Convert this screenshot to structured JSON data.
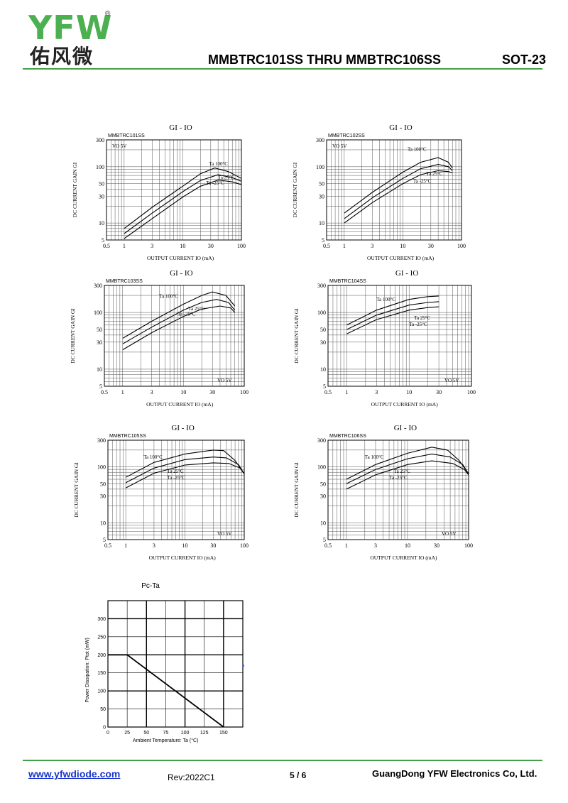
{
  "header": {
    "logo_text": "YFW",
    "logo_chinese": "佑风微",
    "registered_mark": "®",
    "title": "MMBTRC101SS THRU MMBTRC106SS",
    "package": "SOT-23",
    "accent_color": "#43a047"
  },
  "footer": {
    "url": "www.yfwdiode.com",
    "revision": "Rev:2022C1",
    "page": "5 / 6",
    "company": "GuangDong YFW Electronics Co, Ltd."
  },
  "chart_data": [
    {
      "type": "line",
      "title": "GI - IO",
      "model": "MMBTRC101SS",
      "condition": "VO 5V",
      "condition_pos": "top-left",
      "xlabel": "OUTPUT CURRENT IO (mA)",
      "ylabel": "DC CURRENT GAIN GI",
      "x_scale": "log",
      "y_scale": "log",
      "xlim": [
        0.5,
        100
      ],
      "ylim": [
        5,
        300
      ],
      "x_ticks": [
        "0.5",
        "1",
        "3",
        "10",
        "30",
        "100"
      ],
      "y_ticks": [
        "5",
        "10",
        "30",
        "50",
        "100",
        "300"
      ],
      "series": [
        {
          "name": "Ta 100°C",
          "points": [
            [
              1,
              8
            ],
            [
              3,
              19
            ],
            [
              10,
              45
            ],
            [
              20,
              75
            ],
            [
              35,
              95
            ],
            [
              60,
              82
            ],
            [
              100,
              62
            ]
          ]
        },
        {
          "name": "Ta 25°C",
          "points": [
            [
              1,
              6.5
            ],
            [
              3,
              15
            ],
            [
              10,
              36
            ],
            [
              20,
              57
            ],
            [
              40,
              72
            ],
            [
              70,
              64
            ],
            [
              100,
              55
            ]
          ]
        },
        {
          "name": "Ta -25°C",
          "points": [
            [
              1,
              5.3
            ],
            [
              3,
              12
            ],
            [
              10,
              29
            ],
            [
              20,
              45
            ],
            [
              40,
              58
            ],
            [
              70,
              54
            ],
            [
              100,
              48
            ]
          ]
        }
      ]
    },
    {
      "type": "line",
      "title": "GI - IO",
      "model": "MMBTRC102SS",
      "condition": "VO 5V",
      "condition_pos": "top-left",
      "xlabel": "OUTPUT CURRENT IO (mA)",
      "ylabel": "DC CURRENT GAIN GI",
      "x_scale": "log",
      "y_scale": "log",
      "xlim": [
        0.5,
        100
      ],
      "ylim": [
        5,
        300
      ],
      "x_ticks": [
        "0.5",
        "1",
        "3",
        "10",
        "30",
        "100"
      ],
      "y_ticks": [
        "5",
        "10",
        "30",
        "50",
        "100",
        "300"
      ],
      "series": [
        {
          "name": "Ta 100°C",
          "points": [
            [
              1,
              15
            ],
            [
              3,
              35
            ],
            [
              10,
              80
            ],
            [
              20,
              120
            ],
            [
              40,
              145
            ],
            [
              60,
              120
            ],
            [
              70,
              95
            ]
          ]
        },
        {
          "name": "Ta 25°C",
          "points": [
            [
              1,
              12
            ],
            [
              3,
              28
            ],
            [
              10,
              62
            ],
            [
              20,
              92
            ],
            [
              40,
              110
            ],
            [
              60,
              100
            ],
            [
              70,
              85
            ]
          ]
        },
        {
          "name": "Ta -25°C",
          "points": [
            [
              1,
              10
            ],
            [
              3,
              23
            ],
            [
              10,
              50
            ],
            [
              20,
              72
            ],
            [
              40,
              85
            ],
            [
              60,
              82
            ],
            [
              70,
              78
            ]
          ]
        }
      ]
    },
    {
      "type": "line",
      "title": "GI - IO",
      "model": "MMBTRC103SS",
      "condition": "VO 5V",
      "condition_pos": "bottom-right",
      "xlabel": "OUTPUT CURRENT IO (mA)",
      "ylabel": "DC CURRENT GAIN GI",
      "x_scale": "log",
      "y_scale": "log",
      "xlim": [
        0.5,
        100
      ],
      "ylim": [
        5,
        300
      ],
      "x_ticks": [
        "0.5",
        "1",
        "3",
        "10",
        "30",
        "100"
      ],
      "y_ticks": [
        "5",
        "10",
        "30",
        "50",
        "100",
        "300"
      ],
      "series": [
        {
          "name": "Ta 100°C",
          "points": [
            [
              1,
              35
            ],
            [
              3,
              70
            ],
            [
              10,
              140
            ],
            [
              20,
              200
            ],
            [
              30,
              230
            ],
            [
              50,
              200
            ],
            [
              70,
              130
            ]
          ]
        },
        {
          "name": "Ta 25°C",
          "points": [
            [
              1,
              28
            ],
            [
              3,
              55
            ],
            [
              10,
              110
            ],
            [
              20,
              150
            ],
            [
              35,
              170
            ],
            [
              55,
              150
            ],
            [
              70,
              110
            ]
          ]
        },
        {
          "name": "Ta -25°C",
          "points": [
            [
              1,
              22
            ],
            [
              3,
              44
            ],
            [
              10,
              85
            ],
            [
              20,
              115
            ],
            [
              40,
              130
            ],
            [
              60,
              120
            ],
            [
              70,
              100
            ]
          ]
        }
      ]
    },
    {
      "type": "line",
      "title": "GI - IO",
      "model": "MMBTRC104SS",
      "condition": "VO 5V",
      "condition_pos": "bottom-right",
      "xlabel": "OUTPUT CURRENT IO (mA)",
      "ylabel": "DC CURRENT GAIN GI",
      "x_scale": "log",
      "y_scale": "log",
      "xlim": [
        0.5,
        100
      ],
      "ylim": [
        5,
        300
      ],
      "x_ticks": [
        "0.5",
        "1",
        "3",
        "10",
        "30",
        "100"
      ],
      "y_ticks": [
        "5",
        "10",
        "30",
        "50",
        "100",
        "300"
      ],
      "series": [
        {
          "name": "Ta 100°C",
          "points": [
            [
              1,
              60
            ],
            [
              3,
              110
            ],
            [
              10,
              170
            ],
            [
              20,
              190
            ],
            [
              30,
              195
            ]
          ]
        },
        {
          "name": "Ta 25°C",
          "points": [
            [
              1,
              50
            ],
            [
              3,
              90
            ],
            [
              10,
              135
            ],
            [
              20,
              150
            ],
            [
              30,
              155
            ]
          ]
        },
        {
          "name": "Ta -25°C",
          "points": [
            [
              1,
              42
            ],
            [
              3,
              75
            ],
            [
              10,
              110
            ],
            [
              20,
              122
            ],
            [
              30,
              126
            ]
          ]
        }
      ]
    },
    {
      "type": "line",
      "title": "GI - IO",
      "model": "MMBTRC105SS",
      "condition": "VO 5V",
      "condition_pos": "bottom-right",
      "xlabel": "OUTPUT CURRENT IO (mA)",
      "ylabel": "DC CURRENT GAIN GI",
      "x_scale": "log",
      "y_scale": "log",
      "xlim": [
        0.5,
        100
      ],
      "ylim": [
        5,
        300
      ],
      "x_ticks": [
        "0.5",
        "1",
        "3",
        "10",
        "30",
        "100"
      ],
      "y_ticks": [
        "5",
        "10",
        "30",
        "50",
        "100",
        "300"
      ],
      "series": [
        {
          "name": "Ta 100°C",
          "points": [
            [
              1,
              65
            ],
            [
              3,
              120
            ],
            [
              10,
              170
            ],
            [
              30,
              200
            ],
            [
              45,
              195
            ],
            [
              70,
              130
            ],
            [
              100,
              75
            ]
          ]
        },
        {
          "name": "Ta 25°C",
          "points": [
            [
              1,
              52
            ],
            [
              3,
              95
            ],
            [
              10,
              135
            ],
            [
              30,
              150
            ],
            [
              50,
              145
            ],
            [
              80,
              110
            ],
            [
              100,
              75
            ]
          ]
        },
        {
          "name": "Ta -25°C",
          "points": [
            [
              1,
              42
            ],
            [
              3,
              77
            ],
            [
              10,
              108
            ],
            [
              30,
              118
            ],
            [
              55,
              115
            ],
            [
              85,
              95
            ],
            [
              100,
              75
            ]
          ]
        }
      ]
    },
    {
      "type": "line",
      "title": "GI - IO",
      "model": "MMBTRC106SS",
      "condition": "VO 5V",
      "condition_pos": "bottom-right",
      "xlabel": "OUTPUT CURRENT IO (mA)",
      "ylabel": "DC CURRENT GAIN GI",
      "x_scale": "log",
      "y_scale": "log",
      "xlim": [
        0.5,
        100
      ],
      "ylim": [
        5,
        300
      ],
      "x_ticks": [
        "0.5",
        "1",
        "3",
        "10",
        "30",
        "100"
      ],
      "y_ticks": [
        "5",
        "10",
        "30",
        "50",
        "100",
        "300"
      ],
      "series": [
        {
          "name": "Ta 100°C",
          "points": [
            [
              1,
              60
            ],
            [
              3,
              110
            ],
            [
              10,
              175
            ],
            [
              25,
              225
            ],
            [
              45,
              200
            ],
            [
              70,
              130
            ],
            [
              100,
              75
            ]
          ]
        },
        {
          "name": "Ta 25°C",
          "points": [
            [
              1,
              50
            ],
            [
              3,
              90
            ],
            [
              10,
              140
            ],
            [
              25,
              170
            ],
            [
              50,
              150
            ],
            [
              80,
              110
            ],
            [
              100,
              75
            ]
          ]
        },
        {
          "name": "Ta -25°C",
          "points": [
            [
              1,
              40
            ],
            [
              3,
              72
            ],
            [
              10,
              110
            ],
            [
              25,
              128
            ],
            [
              55,
              115
            ],
            [
              85,
              90
            ],
            [
              100,
              72
            ]
          ]
        }
      ]
    },
    {
      "type": "line",
      "title": "Pc-Ta",
      "model": "",
      "condition": "",
      "xlabel": "Ambient Temperature: Ta (°C)",
      "ylabel": "Power Dissipation: Ptot (mW)",
      "x_scale": "linear",
      "y_scale": "linear",
      "xlim": [
        0,
        175
      ],
      "ylim": [
        0,
        350
      ],
      "x_ticks": [
        "0",
        "25",
        "50",
        "75",
        "100",
        "125",
        "150"
      ],
      "y_ticks": [
        "0",
        "50",
        "100",
        "150",
        "200",
        "250",
        "300"
      ],
      "series": [
        {
          "name": "",
          "points": [
            [
              0,
              200
            ],
            [
              25,
              200
            ],
            [
              150,
              0
            ]
          ]
        }
      ]
    }
  ]
}
